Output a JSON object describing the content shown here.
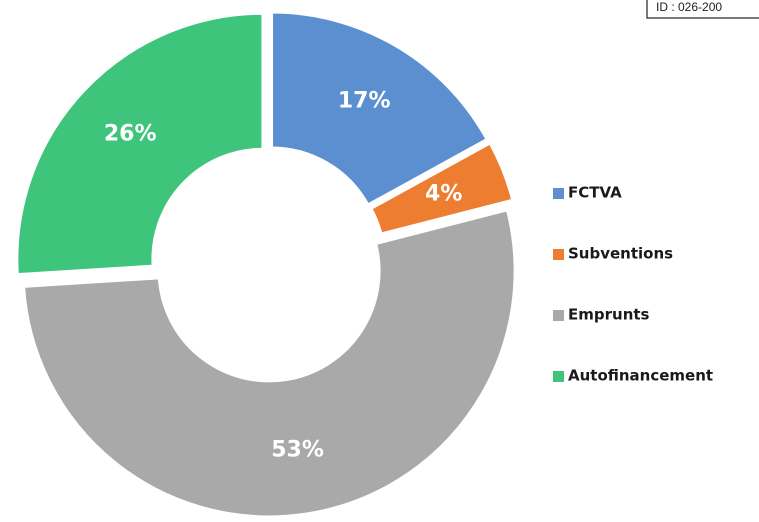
{
  "chart_data": {
    "type": "donut",
    "annotation": "ID : 026-200",
    "categories": [
      "FCTVA",
      "Subventions",
      "Emprunts",
      "Autofinancement"
    ],
    "values": [
      17,
      4,
      53,
      26
    ],
    "value_labels": [
      "17%",
      "4%",
      "53%",
      "26%"
    ],
    "colors": [
      "#5b8fd0",
      "#ed7d31",
      "#a9a9a9",
      "#3fc47c"
    ],
    "legend": "right"
  }
}
